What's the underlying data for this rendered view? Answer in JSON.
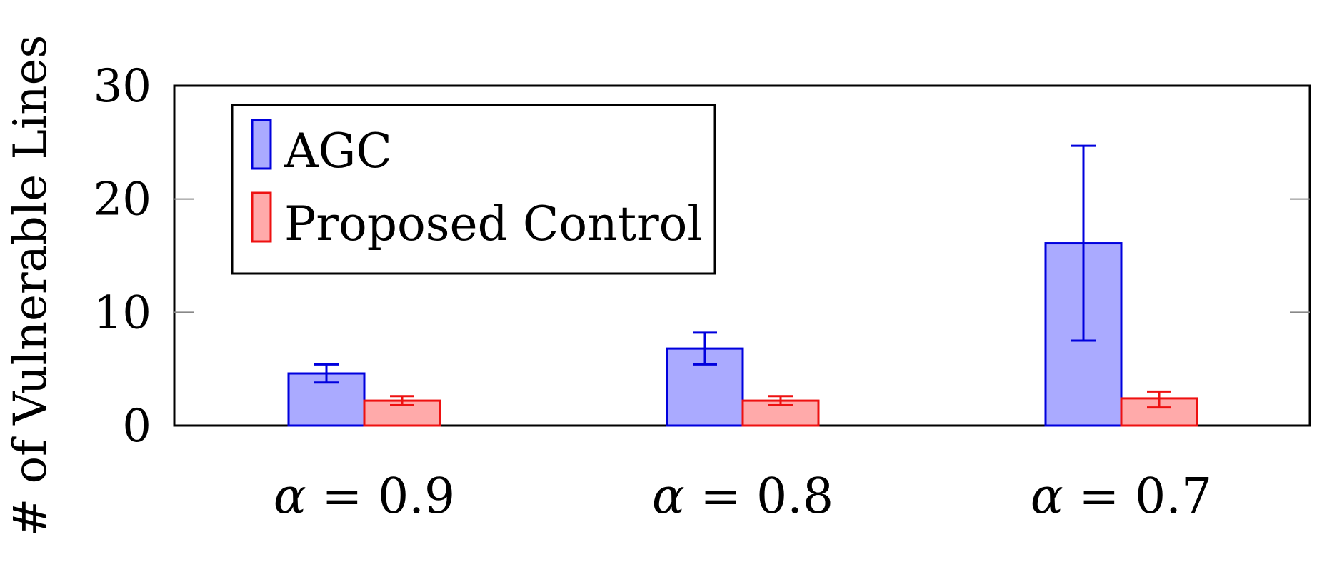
{
  "chart_data": {
    "type": "bar",
    "title": "",
    "xlabel": "",
    "ylabel": "# of Vulnerable Lines",
    "categories": [
      "α = 0.9",
      "α = 0.8",
      "α = 0.7"
    ],
    "category_parts": [
      {
        "symbol": "α",
        "rest": " = 0.9"
      },
      {
        "symbol": "α",
        "rest": " = 0.8"
      },
      {
        "symbol": "α",
        "rest": " = 0.7"
      }
    ],
    "ylim": [
      0,
      30
    ],
    "yticks": [
      0,
      10,
      20,
      30
    ],
    "grid": false,
    "legend_position": "top-left",
    "series": [
      {
        "name": "AGC",
        "values": [
          4.6,
          6.8,
          16.1
        ],
        "error_low": [
          3.8,
          5.4,
          7.5
        ],
        "error_high": [
          5.4,
          8.2,
          24.7
        ],
        "fill": "#aaaaff",
        "stroke": "#0000dd"
      },
      {
        "name": "Proposed Control",
        "values": [
          2.2,
          2.2,
          2.4
        ],
        "error_low": [
          1.8,
          1.8,
          1.6
        ],
        "error_high": [
          2.6,
          2.6,
          3.0
        ],
        "fill": "#ffaaaa",
        "stroke": "#ee1111"
      }
    ]
  }
}
